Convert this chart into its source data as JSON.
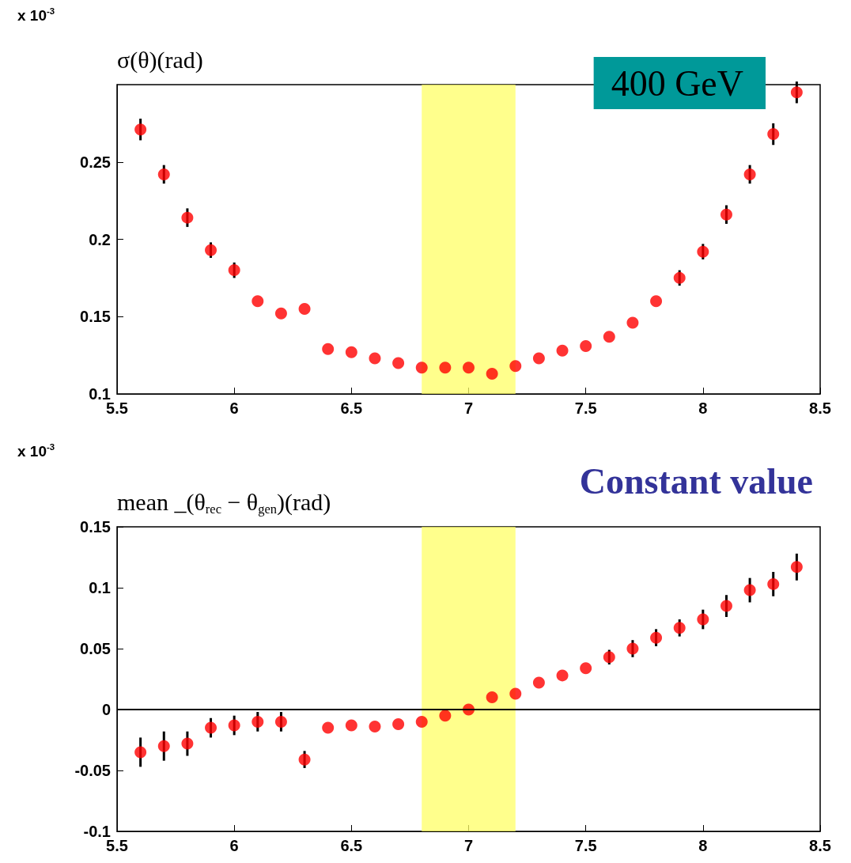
{
  "chart_data": [
    {
      "type": "scatter",
      "ylabel": "σ(θ)(rad)",
      "annotations": [
        "x 10$^{-3}$",
        "400 GeV"
      ],
      "x": [
        5.6,
        5.7,
        5.8,
        5.9,
        6.0,
        6.1,
        6.2,
        6.3,
        6.4,
        6.5,
        6.6,
        6.7,
        6.8,
        6.9,
        7.0,
        7.1,
        7.2,
        7.3,
        7.4,
        7.5,
        7.6,
        7.7,
        7.8,
        7.9,
        8.0,
        8.1,
        8.2,
        8.3,
        8.4
      ],
      "series": [
        {
          "color": "#ff0000",
          "values": [
            0.271,
            0.242,
            0.214,
            0.193,
            0.18,
            0.16,
            0.152,
            0.155,
            0.129,
            0.127,
            0.123,
            0.12,
            0.117,
            0.117,
            0.117,
            0.113,
            0.118,
            0.123,
            0.128,
            0.131,
            0.137,
            0.146,
            0.16,
            0.175,
            0.192,
            0.216,
            0.242,
            0.268,
            0.295
          ],
          "errors": [
            0.007,
            0.006,
            0.006,
            0.005,
            0.005,
            null,
            null,
            null,
            null,
            null,
            null,
            null,
            null,
            null,
            null,
            null,
            null,
            null,
            null,
            null,
            null,
            null,
            null,
            0.005,
            0.005,
            0.006,
            0.006,
            0.007,
            0.007
          ]
        }
      ],
      "xlim": [
        5.5,
        8.5
      ],
      "xticks": [
        5.5,
        6,
        6.5,
        7,
        7.5,
        8,
        8.5
      ],
      "ylim": [
        0.1,
        0.3
      ],
      "yticks": [
        0.1,
        0.15,
        0.2,
        0.25
      ],
      "bands": [
        {
          "axis": "x",
          "from": 6.8,
          "to": 7.2,
          "color": "#ffff66"
        }
      ],
      "marker": "circle"
    },
    {
      "type": "scatter",
      "ylabel": "mean _(θ$_{rec}$ − θ$_{gen}$)(rad)",
      "annotations": [
        "x 10$^{-3}$",
        "Constant value"
      ],
      "x": [
        5.6,
        5.7,
        5.8,
        5.9,
        6.0,
        6.1,
        6.2,
        6.3,
        6.4,
        6.5,
        6.6,
        6.7,
        6.8,
        6.9,
        7.0,
        7.1,
        7.2,
        7.3,
        7.4,
        7.5,
        7.6,
        7.7,
        7.8,
        7.9,
        8.0,
        8.1,
        8.2,
        8.3,
        8.4
      ],
      "series": [
        {
          "color": "#ff0000",
          "values": [
            -0.035,
            -0.03,
            -0.028,
            -0.015,
            -0.013,
            -0.01,
            -0.01,
            -0.041,
            -0.015,
            -0.013,
            -0.014,
            -0.012,
            -0.01,
            -0.005,
            0.0,
            0.01,
            0.013,
            0.022,
            0.028,
            0.034,
            0.043,
            0.05,
            0.059,
            0.067,
            0.074,
            0.085,
            0.098,
            0.103,
            0.117
          ],
          "errors": [
            0.012,
            0.012,
            0.01,
            0.008,
            0.008,
            0.008,
            0.008,
            0.007,
            null,
            null,
            null,
            null,
            null,
            null,
            null,
            null,
            null,
            null,
            null,
            null,
            0.006,
            0.007,
            0.007,
            0.007,
            0.008,
            0.009,
            0.01,
            0.01,
            0.011
          ]
        }
      ],
      "xlim": [
        5.5,
        8.5
      ],
      "xticks": [
        5.5,
        6,
        6.5,
        7,
        7.5,
        8,
        8.5
      ],
      "ylim": [
        -0.1,
        0.15
      ],
      "yticks": [
        -0.1,
        -0.05,
        0,
        0.05,
        0.1,
        0.15
      ],
      "bands": [
        {
          "axis": "x",
          "from": 6.8,
          "to": 7.2,
          "color": "#ffff66"
        }
      ],
      "ref_lines": [
        {
          "axis": "y",
          "value": 0,
          "color": "#000000"
        }
      ],
      "marker": "circle"
    }
  ]
}
